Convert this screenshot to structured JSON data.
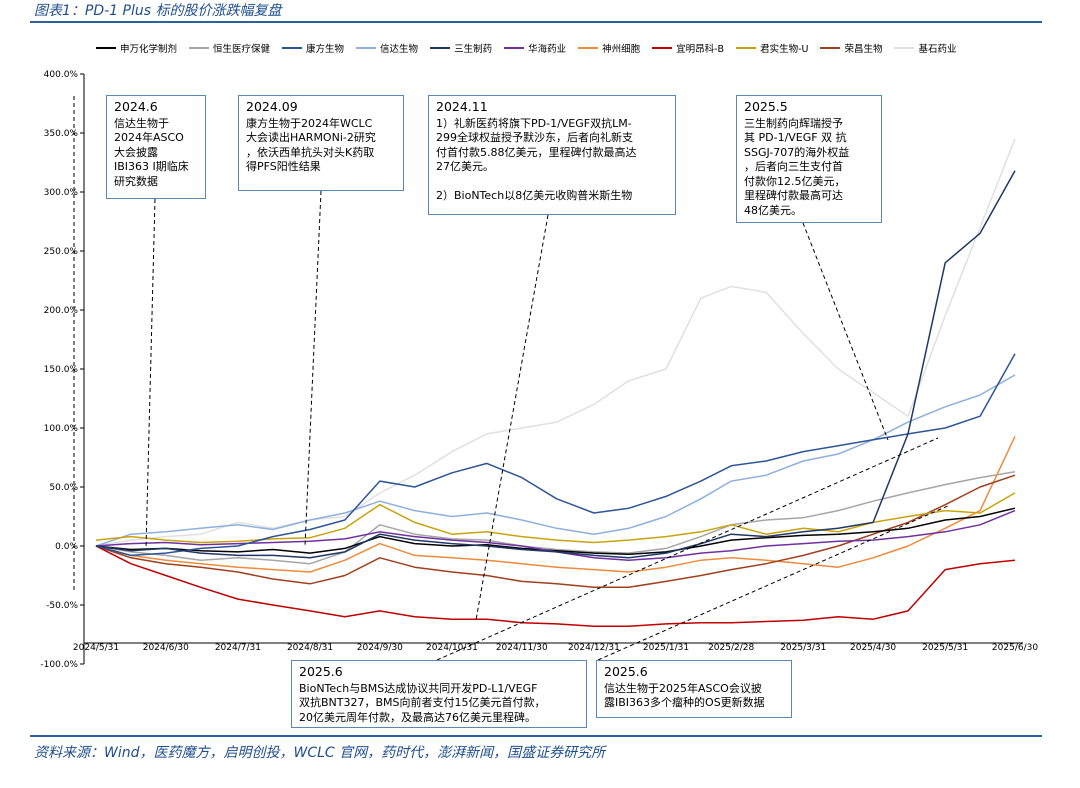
{
  "figure_title": "图表1：PD-1 Plus 标的股价涨跌幅复盘",
  "source": "资料来源：Wind，医药魔方，启明创投，WCLC 官网，药时代，澎湃新闻，国盛证券研究所",
  "legend": [
    {
      "label": "申万化学制剂",
      "color": "#000000"
    },
    {
      "label": "恒生医疗保健",
      "color": "#a6a6a6"
    },
    {
      "label": "康方生物",
      "color": "#2e5597"
    },
    {
      "label": "信达生物",
      "color": "#8fb0de"
    },
    {
      "label": "三生制药",
      "color": "#1f3864"
    },
    {
      "label": "华海药业",
      "color": "#7030a0"
    },
    {
      "label": "神州细胞",
      "color": "#f08a3c"
    },
    {
      "label": "宜明昂科-B",
      "color": "#c00000"
    },
    {
      "label": "君实生物-U",
      "color": "#c9a20c"
    },
    {
      "label": "荣昌生物",
      "color": "#a0401e"
    },
    {
      "label": "基石药业",
      "color": "#e0e0e0"
    }
  ],
  "annotations": [
    {
      "title": "2024.6",
      "body": "信达生物于\n2024年ASCO\n大会披露\nIBI363 I期临床\n研究数据"
    },
    {
      "title": "2024.09",
      "body": "康方生物于2024年WCLC\n大会读出HARMONi-2研究\n，依沃西单抗头对头K药取\n得PFS阳性结果"
    },
    {
      "title": "2024.11",
      "body": "1）礼新医药将旗下PD-1/VEGF双抗LM-\n299全球权益授予默沙东，后者向礼新支\n付首付款5.88亿美元，里程碑付款最高达\n27亿美元。\n\n2）BioNTech以8亿美元收购普米斯生物"
    },
    {
      "title": "2025.5",
      "body": "三生制药向辉瑞授予\n其 PD-1/VEGF 双 抗\nSSGJ-707的海外权益\n，后者向三生支付首\n付款你12.5亿美元，\n里程碑付款最高可达\n48亿美元。"
    },
    {
      "title": "2025.6",
      "body": "BioNTech与BMS达成协议共同开发PD-L1/VEGF\n双抗BNT327，BMS向前者支付15亿美元首付款，\n20亿美元周年付款，及最高达76亿美元里程碑。"
    },
    {
      "title": "2025.6",
      "body": "信达生物于2025年ASCO会议披\n露IBI363多个瘤种的OS更新数据"
    }
  ],
  "chart_data": {
    "type": "line",
    "title": "PD-1 Plus 标的股价涨跌幅复盘",
    "y_ticks": [
      "400.0%",
      "350.0%",
      "300.0%",
      "250.0%",
      "200.0%",
      "150.0%",
      "100.0%",
      "50.0%",
      "0.0%",
      "-50.0%",
      "-100.0%"
    ],
    "ylim": [
      -100,
      400
    ],
    "x_ticks": [
      "2024/5/31",
      "2024/6/30",
      "2024/7/31",
      "2024/8/31",
      "2024/9/30",
      "2024/10/31",
      "2024/11/30",
      "2024/12/31",
      "2025/1/31",
      "2025/2/28",
      "2025/3/31",
      "2025/4/30",
      "2025/5/31",
      "2025/6/30"
    ],
    "x": [
      "2024/5/31",
      "2024/6/15",
      "2024/6/30",
      "2024/7/15",
      "2024/7/31",
      "2024/8/15",
      "2024/8/31",
      "2024/9/15",
      "2024/9/30",
      "2024/10/15",
      "2024/10/31",
      "2024/11/15",
      "2024/11/30",
      "2024/12/15",
      "2024/12/31",
      "2025/1/15",
      "2025/1/31",
      "2025/2/15",
      "2025/2/28",
      "2025/3/15",
      "2025/3/31",
      "2025/4/15",
      "2025/4/30",
      "2025/5/15",
      "2025/5/31",
      "2025/6/15",
      "2025/6/30"
    ],
    "series": [
      {
        "name": "申万化学制剂",
        "values": [
          0,
          -3,
          -2,
          -4,
          -5,
          -3,
          -6,
          -2,
          8,
          2,
          0,
          1,
          -2,
          -4,
          -6,
          -7,
          -5,
          0,
          5,
          7,
          9,
          10,
          12,
          15,
          22,
          25,
          32
        ]
      },
      {
        "name": "恒生医疗保健",
        "values": [
          0,
          -5,
          -8,
          -12,
          -10,
          -12,
          -15,
          -5,
          18,
          10,
          6,
          5,
          0,
          -3,
          -5,
          -6,
          -2,
          8,
          18,
          22,
          24,
          30,
          38,
          45,
          52,
          58,
          63
        ]
      },
      {
        "name": "康方生物",
        "values": [
          0,
          -8,
          -6,
          -2,
          0,
          8,
          14,
          22,
          55,
          50,
          62,
          70,
          58,
          40,
          28,
          32,
          42,
          55,
          68,
          72,
          80,
          85,
          90,
          95,
          100,
          110,
          163
        ]
      },
      {
        "name": "信达生物",
        "values": [
          0,
          10,
          12,
          15,
          18,
          14,
          22,
          28,
          38,
          30,
          25,
          28,
          22,
          15,
          10,
          15,
          25,
          40,
          55,
          60,
          72,
          78,
          90,
          105,
          118,
          128,
          145
        ]
      },
      {
        "name": "三生制药",
        "values": [
          0,
          -4,
          -2,
          -6,
          -8,
          -8,
          -10,
          -5,
          10,
          5,
          2,
          0,
          -3,
          -5,
          -8,
          -10,
          -6,
          2,
          10,
          8,
          12,
          15,
          20,
          95,
          240,
          265,
          318
        ]
      },
      {
        "name": "华海药业",
        "values": [
          0,
          2,
          3,
          1,
          2,
          3,
          4,
          6,
          12,
          8,
          5,
          3,
          0,
          -5,
          -10,
          -12,
          -10,
          -6,
          -4,
          0,
          2,
          4,
          5,
          8,
          12,
          18,
          30
        ]
      },
      {
        "name": "神州细胞",
        "values": [
          0,
          -8,
          -12,
          -15,
          -18,
          -20,
          -22,
          -12,
          2,
          -8,
          -10,
          -12,
          -15,
          -18,
          -20,
          -22,
          -18,
          -12,
          -10,
          -12,
          -15,
          -18,
          -10,
          0,
          15,
          30,
          93
        ]
      },
      {
        "name": "宜明昂科-B",
        "values": [
          0,
          -15,
          -25,
          -35,
          -45,
          -50,
          -55,
          -60,
          -55,
          -60,
          -62,
          -62,
          -65,
          -66,
          -68,
          -68,
          -66,
          -65,
          -65,
          -64,
          -63,
          -60,
          -62,
          -55,
          -20,
          -15,
          -12
        ]
      },
      {
        "name": "君实生物-U",
        "values": [
          5,
          8,
          5,
          3,
          4,
          6,
          7,
          15,
          35,
          20,
          10,
          12,
          8,
          5,
          3,
          5,
          8,
          12,
          18,
          10,
          15,
          12,
          20,
          25,
          30,
          28,
          45
        ]
      },
      {
        "name": "荣昌生物",
        "values": [
          0,
          -10,
          -15,
          -18,
          -22,
          -28,
          -32,
          -25,
          -10,
          -18,
          -22,
          -25,
          -30,
          -32,
          -35,
          -35,
          -30,
          -25,
          -20,
          -15,
          -8,
          0,
          10,
          20,
          35,
          50,
          60
        ]
      },
      {
        "name": "基石药业",
        "values": [
          0,
          5,
          8,
          10,
          20,
          15,
          22,
          25,
          45,
          60,
          80,
          95,
          100,
          105,
          120,
          140,
          150,
          210,
          220,
          215,
          180,
          150,
          130,
          110,
          195,
          270,
          345
        ]
      }
    ]
  }
}
